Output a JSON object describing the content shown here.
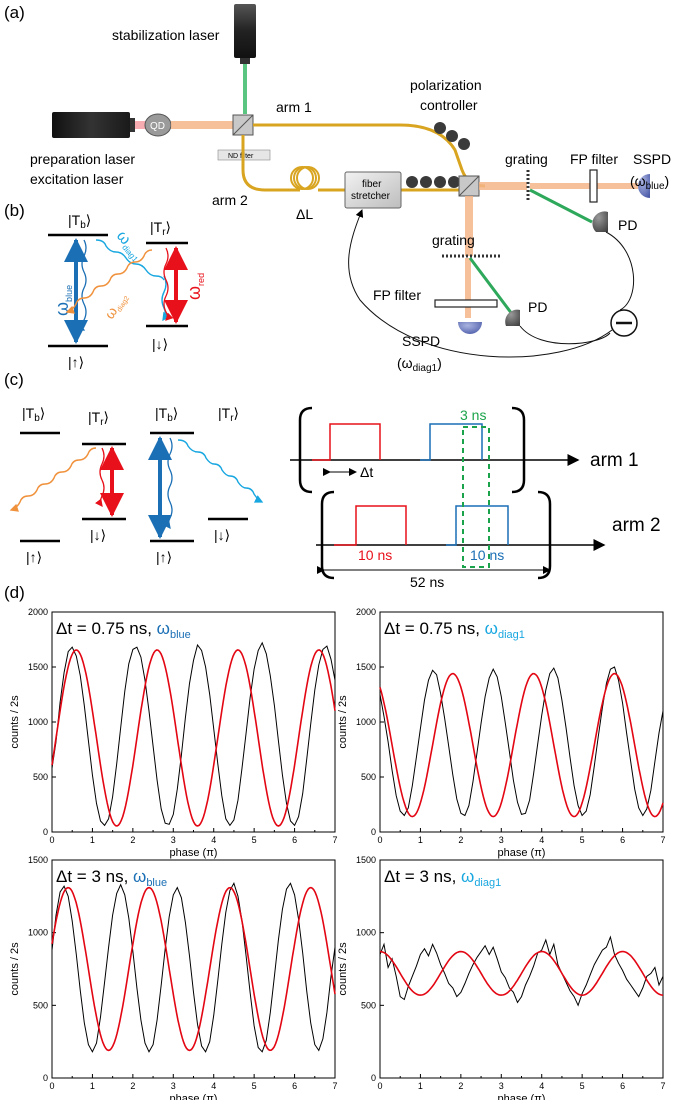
{
  "figure": {
    "panel_labels": [
      "(a)",
      "(b)",
      "(c)",
      "(d)"
    ],
    "setup": {
      "stabilization_laser": "stabilization laser",
      "qd": "QD",
      "preparation_laser": "preparation laser",
      "excitation_laser": "excitation laser",
      "nd_filter": "ND filter",
      "arm1": "arm 1",
      "arm2": "arm 2",
      "delta_l": "ΔL",
      "fiber": "fiber",
      "stretcher": "stretcher",
      "polarization": "polarization",
      "controller": "controller",
      "grating_1": "grating",
      "grating_2": "grating",
      "fp_filter_1": "FP filter",
      "fp_filter_2": "FP filter",
      "sspd_1": "SSPD",
      "sspd_1_sub_open": "(ω",
      "sspd_1_sub": "blue",
      "sspd_1_sub_close": ")",
      "sspd_2": "SSPD",
      "sspd_2_sub_open": "(ω",
      "sspd_2_sub": "diag1",
      "sspd_2_sub_close": ")",
      "pd_1": "PD",
      "pd_2": "PD"
    },
    "levels_b": {
      "tb": "|T",
      "tb_sub": "b",
      "tr": "|T",
      "tr_sub": "r",
      "up": "|↑⟩",
      "down": "|↓⟩",
      "ket_close": "⟩",
      "omega_blue": "ω",
      "omega_blue_sub": "blue",
      "omega_diag1": "ω",
      "omega_diag1_sub": "diag1",
      "omega_diag2": "ω",
      "omega_diag2_sub": "diag2",
      "omega_red": "ω",
      "omega_red_sub": "red"
    },
    "levels_c": {
      "tb": "|T",
      "tb_sub": "b",
      "tr": "|T",
      "tr_sub": "r",
      "up": "|↑⟩",
      "down": "|↓⟩",
      "ket_close": "⟩"
    },
    "timing": {
      "arm1": "arm 1",
      "arm2": "arm 2",
      "window": "3 ns",
      "delta_t": "Δt",
      "pulse_red": "10 ns",
      "pulse_blue": "10 ns",
      "period": "52 ns"
    },
    "colors": {
      "red": "#e8101a",
      "blue": "#1a6fb5",
      "cyan": "#19a7e0",
      "orange": "#f0913c",
      "green": "#1aa34a",
      "fiber": "#d9a520",
      "fit": "#e30613"
    }
  },
  "chart_data": [
    {
      "type": "line",
      "annotation": "Δt = 0.75 ns, ",
      "annotation_omega": "ω",
      "annotation_sub": "blue",
      "annotation_color": "#1a6fb5",
      "xlabel": "phase (π)",
      "ylabel": "counts / 2s",
      "xlim": [
        0,
        7
      ],
      "ylim": [
        0,
        2000
      ],
      "xticks": [
        "0",
        "1",
        "2",
        "3",
        "4",
        "5",
        "6",
        "7"
      ],
      "yticks": [
        "0",
        "500",
        "1000",
        "1500",
        "2000"
      ],
      "fit": {
        "mean": 855,
        "amplitude": 800,
        "period": 2.0,
        "peak": 0.6
      },
      "series": [
        {
          "values": [
            580,
            820,
            1180,
            1450,
            1640,
            1680,
            1600,
            1420,
            1150,
            830,
            520,
            260,
            100,
            60,
            120,
            320,
            620,
            950,
            1280,
            1530,
            1660,
            1680,
            1590,
            1380,
            1100,
            780,
            470,
            210,
            80,
            70,
            160,
            390,
            700,
            1040,
            1350,
            1560,
            1700,
            1650,
            1500,
            1250,
            940,
            620,
            330,
            120,
            60,
            110,
            290,
            580,
            900,
            1220,
            1480,
            1650,
            1720,
            1620,
            1420,
            1150,
            830,
            520,
            260,
            100,
            60,
            140,
            350,
            660,
            980,
            1290,
            1520,
            1660,
            1690,
            1570,
            1380
          ]
        }
      ]
    },
    {
      "type": "line",
      "annotation": "Δt = 0.75 ns, ",
      "annotation_omega": "ω",
      "annotation_sub": "diag1",
      "annotation_color": "#19a7e0",
      "xlabel": "phase (π)",
      "ylabel": "counts / 2s",
      "xlim": [
        0,
        7
      ],
      "ylim": [
        0,
        2000
      ],
      "xticks": [
        "0",
        "1",
        "2",
        "3",
        "4",
        "5",
        "6",
        "7"
      ],
      "yticks": [
        "0",
        "500",
        "1000",
        "1500",
        "2000"
      ],
      "fit": {
        "mean": 790,
        "amplitude": 650,
        "period": 2.0,
        "peak": 1.8
      },
      "series": [
        {
          "values": [
            1250,
            1050,
            820,
            560,
            330,
            190,
            150,
            220,
            420,
            680,
            940,
            1200,
            1380,
            1470,
            1430,
            1260,
            1030,
            780,
            520,
            300,
            170,
            150,
            240,
            460,
            720,
            990,
            1230,
            1400,
            1480,
            1410,
            1230,
            990,
            730,
            470,
            270,
            160,
            170,
            290,
            530,
            800,
            1060,
            1290,
            1440,
            1490,
            1400,
            1200,
            950,
            680,
            420,
            240,
            150,
            190,
            340,
            600,
            870,
            1130,
            1350,
            1480,
            1500,
            1380,
            1170,
            900,
            640,
            390,
            220,
            150,
            210,
            380,
            640,
            900,
            1100
          ]
        }
      ]
    },
    {
      "type": "line",
      "annotation": "Δt = 3 ns, ",
      "annotation_omega": "ω",
      "annotation_sub": "blue",
      "annotation_color": "#1a6fb5",
      "xlabel": "phase (π)",
      "ylabel": "counts / 2s",
      "xlim": [
        0,
        7
      ],
      "ylim": [
        0,
        1500
      ],
      "xticks": [
        "0",
        "1",
        "2",
        "3",
        "4",
        "5",
        "6",
        "7"
      ],
      "yticks": [
        "0",
        "500",
        "1000",
        "1500"
      ],
      "fit": {
        "mean": 750,
        "amplitude": 560,
        "period": 2.0,
        "peak": 0.4
      },
      "series": [
        {
          "values": [
            880,
            1120,
            1280,
            1320,
            1250,
            1080,
            850,
            600,
            380,
            230,
            180,
            240,
            420,
            660,
            900,
            1120,
            1270,
            1330,
            1260,
            1100,
            870,
            620,
            400,
            240,
            180,
            230,
            400,
            640,
            890,
            1110,
            1260,
            1310,
            1240,
            1070,
            840,
            590,
            370,
            220,
            180,
            250,
            430,
            670,
            920,
            1140,
            1290,
            1340,
            1250,
            1080,
            840,
            590,
            360,
            210,
            180,
            260,
            450,
            700,
            950,
            1160,
            1300,
            1340,
            1260,
            1090,
            860,
            600,
            380,
            230,
            190,
            270,
            450,
            700,
            900
          ]
        }
      ]
    },
    {
      "type": "line",
      "annotation": "Δt = 3 ns, ",
      "annotation_omega": "ω",
      "annotation_sub": "diag1",
      "annotation_color": "#19a7e0",
      "xlabel": "phase (π)",
      "ylabel": "counts / 2s",
      "xlim": [
        0,
        7
      ],
      "ylim": [
        0,
        1500
      ],
      "xticks": [
        "0",
        "1",
        "2",
        "3",
        "4",
        "5",
        "6",
        "7"
      ],
      "yticks": [
        "0",
        "500",
        "1000",
        "1500"
      ],
      "fit": {
        "mean": 720,
        "amplitude": 150,
        "period": 2.0,
        "peak": 2.0
      },
      "series": [
        {
          "values": [
            850,
            920,
            760,
            820,
            700,
            560,
            540,
            630,
            700,
            770,
            850,
            890,
            840,
            920,
            860,
            780,
            720,
            650,
            620,
            560,
            590,
            650,
            720,
            780,
            830,
            870,
            910,
            850,
            900,
            820,
            730,
            690,
            620,
            590,
            520,
            560,
            640,
            700,
            770,
            860,
            880,
            950,
            850,
            920,
            780,
            720,
            660,
            600,
            560,
            500,
            580,
            640,
            710,
            780,
            830,
            880,
            900,
            970,
            850,
            790,
            740,
            680,
            640,
            600,
            560,
            620,
            700,
            720,
            760,
            640,
            700
          ]
        }
      ]
    }
  ]
}
